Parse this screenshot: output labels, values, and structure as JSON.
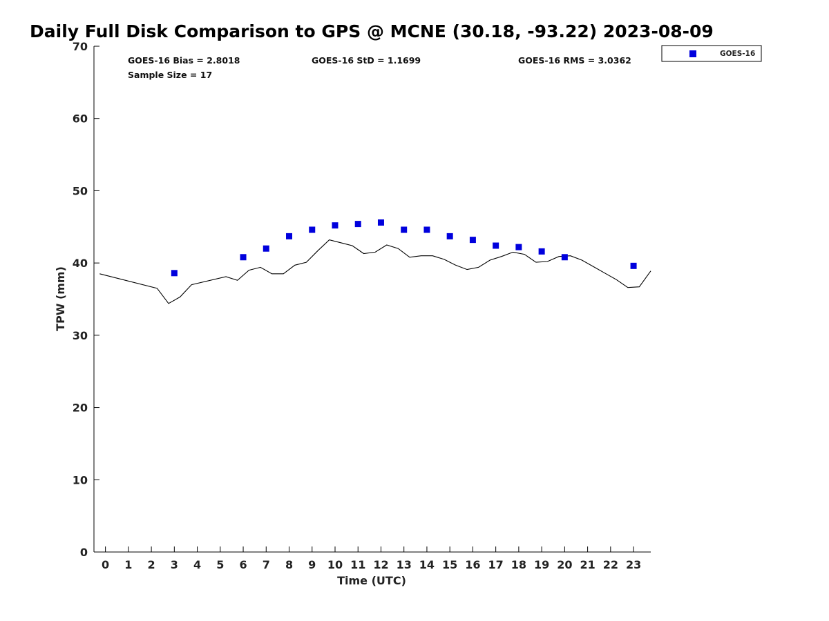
{
  "chart_data": {
    "type": "scatter",
    "title": "Daily Full Disk Comparison to GPS @ MCNE (30.18, -93.22) 2023-08-09",
    "xlabel": "Time (UTC)",
    "ylabel": "TPW (mm)",
    "xlim": [
      -0.5,
      23.75
    ],
    "ylim": [
      0,
      70
    ],
    "xticks": [
      0,
      1,
      2,
      3,
      4,
      5,
      6,
      7,
      8,
      9,
      10,
      11,
      12,
      13,
      14,
      15,
      16,
      17,
      18,
      19,
      20,
      21,
      22,
      23
    ],
    "yticks": [
      0,
      10,
      20,
      30,
      40,
      50,
      60,
      70
    ],
    "grid": false,
    "legend": "top-right",
    "stats": {
      "bias": "GOES-16 Bias = 2.8018",
      "std": "GOES-16 StD = 1.1699",
      "rms": "GOES-16 RMS = 3.0362",
      "sample": "Sample Size = 17"
    },
    "series": [
      {
        "name": "GOES-16",
        "kind": "scatter",
        "color": "#0000dd",
        "x": [
          3,
          6,
          7,
          8,
          9,
          10,
          11,
          12,
          13,
          14,
          15,
          16,
          17,
          18,
          19,
          20,
          23
        ],
        "y": [
          38.6,
          40.8,
          42.0,
          43.7,
          44.6,
          45.2,
          45.4,
          45.6,
          44.6,
          44.6,
          43.7,
          43.2,
          42.4,
          42.2,
          41.6,
          40.8,
          39.6
        ]
      },
      {
        "kind": "line",
        "color": "#000000",
        "x": [
          -0.25,
          2.25,
          2.75,
          3.25,
          3.75,
          5.25,
          5.75,
          6.25,
          6.75,
          7.25,
          7.75,
          8.25,
          8.75,
          9.25,
          9.75,
          10.25,
          10.75,
          11.25,
          11.75,
          12.25,
          12.75,
          13.25,
          13.75,
          14.25,
          14.75,
          15.25,
          15.75,
          16.25,
          16.75,
          17.25,
          17.75,
          18.25,
          18.75,
          19.25,
          19.75,
          20.25,
          20.75,
          21.25,
          21.75,
          22.25,
          22.75,
          23.25,
          23.75
        ],
        "y": [
          38.5,
          36.5,
          34.4,
          35.3,
          37.0,
          38.1,
          37.6,
          39.0,
          39.4,
          38.5,
          38.5,
          39.7,
          40.1,
          41.7,
          43.2,
          42.8,
          42.4,
          41.3,
          41.5,
          42.5,
          42.0,
          40.8,
          41.0,
          41.0,
          40.5,
          39.7,
          39.1,
          39.4,
          40.4,
          40.9,
          41.5,
          41.2,
          40.1,
          40.2,
          40.9,
          41.0,
          40.4,
          39.5,
          38.6,
          37.7,
          36.6,
          36.7,
          38.9
        ]
      }
    ]
  }
}
